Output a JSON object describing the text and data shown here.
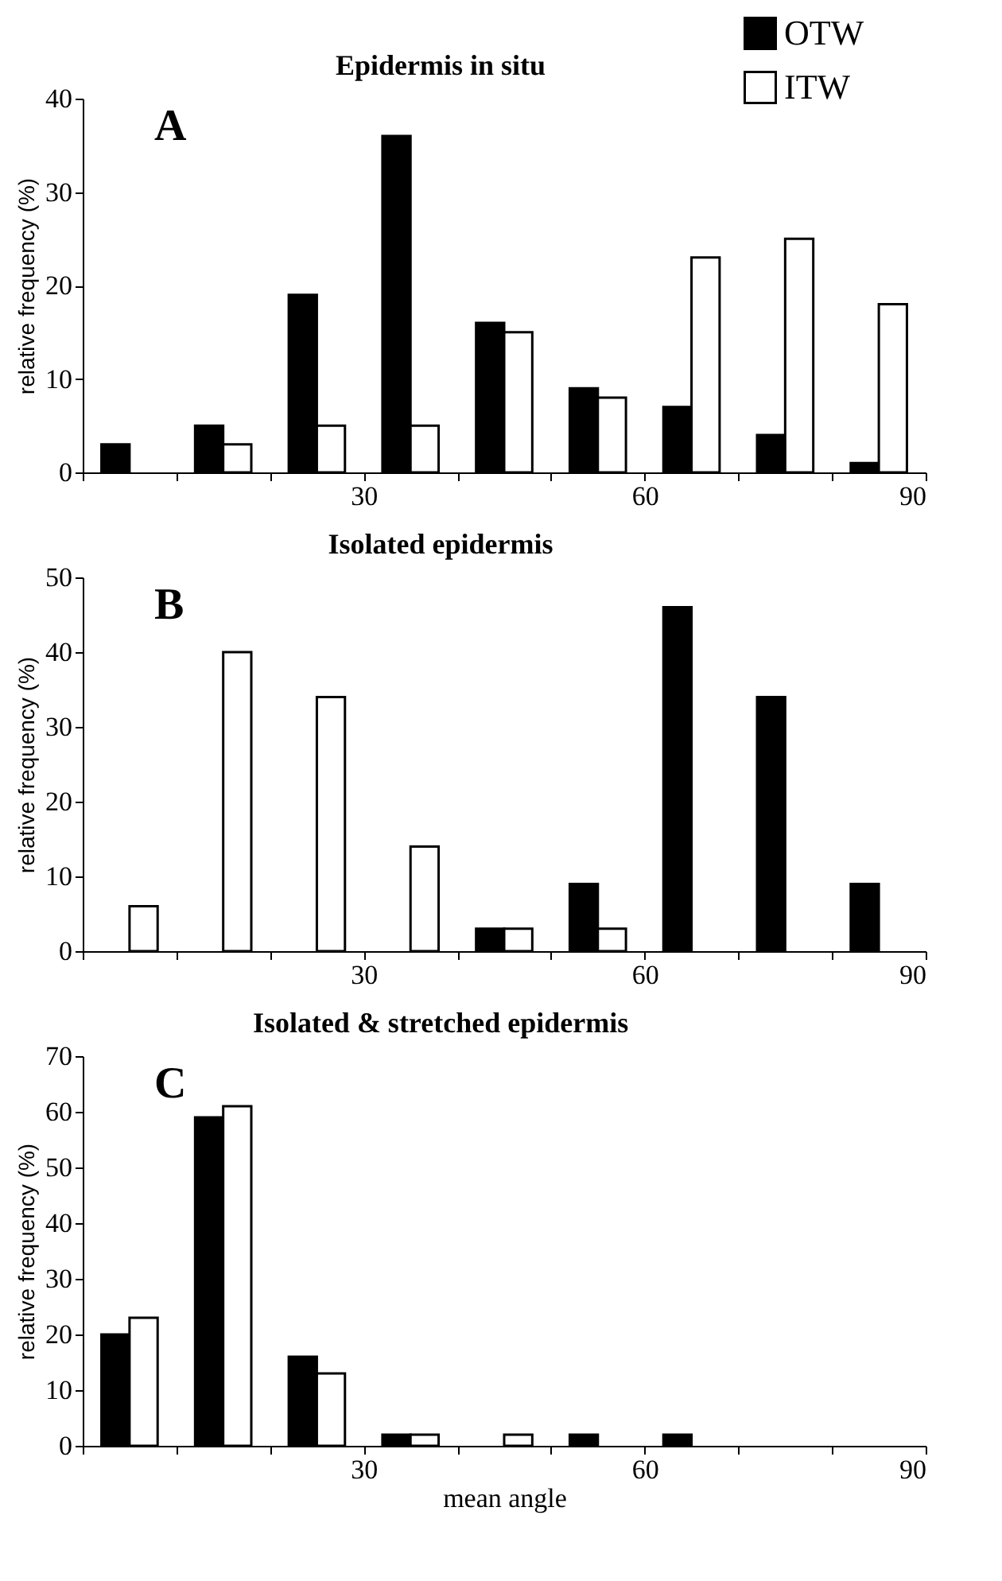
{
  "chart_data": [
    {
      "type": "bar",
      "title": "Epidermis in situ",
      "ylabel": "relative frequency (%)",
      "annotations": [
        "A"
      ],
      "legend": "top right",
      "x": [
        5,
        15,
        25,
        35,
        45,
        55,
        65,
        75,
        85
      ],
      "xlim": [
        0,
        90
      ],
      "xticks": [
        {
          "value": 0,
          "label": null
        },
        {
          "value": 10,
          "label": null
        },
        {
          "value": 20,
          "label": null
        },
        30,
        {
          "value": 40,
          "label": null
        },
        {
          "value": 50,
          "label": null
        },
        60,
        {
          "value": 70,
          "label": null
        },
        {
          "value": 80,
          "label": null
        },
        90
      ],
      "ylim": [
        0,
        40
      ],
      "yticks": [
        0,
        10,
        20,
        30,
        40
      ],
      "grid": false,
      "series": [
        {
          "name": "OTW",
          "color": "#000000",
          "values": [
            3,
            5,
            19,
            36,
            16,
            9,
            7,
            4,
            1
          ]
        },
        {
          "name": "ITW",
          "color": "#ffffff",
          "values": [
            null,
            3,
            5,
            5,
            15,
            8,
            23,
            25,
            18
          ]
        }
      ]
    },
    {
      "type": "bar",
      "title": "Isolated epidermis",
      "ylabel": "relative frequency (%)",
      "annotations": [
        "B"
      ],
      "legend": false,
      "x": [
        5,
        15,
        25,
        35,
        45,
        55,
        65,
        75,
        85
      ],
      "xlim": [
        0,
        90
      ],
      "xticks": [
        {
          "value": 0,
          "label": null
        },
        {
          "value": 10,
          "label": null
        },
        {
          "value": 20,
          "label": null
        },
        30,
        {
          "value": 40,
          "label": null
        },
        {
          "value": 50,
          "label": null
        },
        60,
        {
          "value": 70,
          "label": null
        },
        {
          "value": 80,
          "label": null
        },
        90
      ],
      "ylim": [
        0,
        50
      ],
      "yticks": [
        0,
        10,
        20,
        30,
        40,
        50
      ],
      "grid": false,
      "series": [
        {
          "color": "#000000",
          "values": [
            null,
            null,
            null,
            null,
            3,
            9,
            46,
            34,
            9
          ]
        },
        {
          "color": "#ffffff",
          "values": [
            6,
            40,
            34,
            14,
            3,
            3,
            null,
            null,
            null
          ]
        }
      ]
    },
    {
      "type": "bar",
      "title": "Isolated & stretched epidermis",
      "xlabel": "mean angle",
      "ylabel": "relative frequency (%)",
      "annotations": [
        "C"
      ],
      "legend": false,
      "x": [
        5,
        15,
        25,
        35,
        45,
        55,
        65
      ],
      "xlim": [
        0,
        90
      ],
      "xticks": [
        {
          "value": 0,
          "label": null
        },
        {
          "value": 10,
          "label": null
        },
        {
          "value": 20,
          "label": null
        },
        30,
        {
          "value": 40,
          "label": null
        },
        {
          "value": 50,
          "label": null
        },
        60,
        {
          "value": 70,
          "label": null
        },
        {
          "value": 80,
          "label": null
        },
        90
      ],
      "ylim": [
        0,
        70
      ],
      "yticks": [
        0,
        10,
        20,
        30,
        40,
        50,
        60,
        70
      ],
      "grid": false,
      "series": [
        {
          "color": "#000000",
          "values": [
            20,
            59,
            16,
            2,
            null,
            2,
            2
          ]
        },
        {
          "color": "#ffffff",
          "values": [
            23,
            61,
            13,
            2,
            2,
            null,
            null
          ]
        }
      ]
    }
  ]
}
